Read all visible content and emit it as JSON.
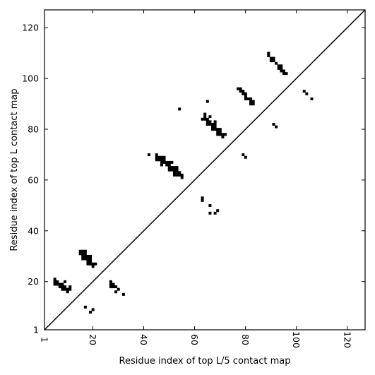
{
  "chart_data": {
    "type": "heatmap",
    "title": "",
    "xlabel": "Residue index of top L/5 contact map",
    "ylabel": "Residue index of top L contact map",
    "xlim": [
      1,
      127
    ],
    "ylim": [
      1,
      127
    ],
    "x_ticks": [
      1,
      20,
      40,
      60,
      80,
      100,
      120
    ],
    "y_ticks": [
      1,
      20,
      40,
      60,
      80,
      100,
      120
    ],
    "diagonal": true,
    "grid": false,
    "cell_color": "#000000",
    "background": "#ffffff",
    "upper_triangle_contacts": [
      [
        89,
        110
      ],
      [
        89,
        109
      ],
      [
        90,
        108
      ],
      [
        91,
        108
      ],
      [
        90,
        107
      ],
      [
        91,
        107
      ],
      [
        92,
        106
      ],
      [
        93,
        105
      ],
      [
        94,
        105
      ],
      [
        93,
        104
      ],
      [
        94,
        104
      ],
      [
        94,
        103
      ],
      [
        95,
        103
      ],
      [
        95,
        102
      ],
      [
        96,
        102
      ],
      [
        77,
        96
      ],
      [
        78,
        96
      ],
      [
        78,
        95
      ],
      [
        79,
        95
      ],
      [
        79,
        94
      ],
      [
        80,
        94
      ],
      [
        80,
        93
      ],
      [
        80,
        92
      ],
      [
        81,
        92
      ],
      [
        82,
        92
      ],
      [
        82,
        91
      ],
      [
        83,
        91
      ],
      [
        82,
        90
      ],
      [
        83,
        90
      ],
      [
        103,
        95
      ],
      [
        104,
        94
      ],
      [
        106,
        92
      ],
      [
        65,
        91
      ],
      [
        54,
        88
      ],
      [
        64,
        86
      ],
      [
        64,
        85
      ],
      [
        66,
        85
      ],
      [
        63,
        84
      ],
      [
        64,
        84
      ],
      [
        65,
        84
      ],
      [
        65,
        83
      ],
      [
        66,
        83
      ],
      [
        68,
        83
      ],
      [
        65,
        82
      ],
      [
        66,
        82
      ],
      [
        67,
        82
      ],
      [
        68,
        82
      ],
      [
        67,
        81
      ],
      [
        68,
        81
      ],
      [
        67,
        80
      ],
      [
        68,
        80
      ],
      [
        69,
        80
      ],
      [
        70,
        80
      ],
      [
        69,
        79
      ],
      [
        70,
        79
      ],
      [
        69,
        78
      ],
      [
        70,
        78
      ],
      [
        71,
        78
      ],
      [
        72,
        78
      ],
      [
        71,
        77
      ],
      [
        91,
        82
      ],
      [
        92,
        81
      ],
      [
        42,
        70
      ],
      [
        79,
        70
      ],
      [
        80,
        69
      ],
      [
        45,
        70
      ],
      [
        45,
        69
      ],
      [
        46,
        69
      ],
      [
        47,
        69
      ],
      [
        48,
        69
      ],
      [
        45,
        68
      ],
      [
        46,
        68
      ],
      [
        47,
        68
      ],
      [
        48,
        68
      ],
      [
        47,
        67
      ],
      [
        48,
        67
      ],
      [
        49,
        67
      ],
      [
        50,
        67
      ],
      [
        51,
        67
      ],
      [
        47,
        66
      ],
      [
        49,
        66
      ],
      [
        50,
        66
      ],
      [
        50,
        65
      ],
      [
        51,
        65
      ],
      [
        52,
        65
      ],
      [
        53,
        65
      ],
      [
        50,
        64
      ],
      [
        51,
        64
      ],
      [
        52,
        64
      ],
      [
        53,
        64
      ],
      [
        52,
        63
      ],
      [
        53,
        63
      ],
      [
        54,
        63
      ],
      [
        52,
        62
      ],
      [
        53,
        62
      ],
      [
        54,
        62
      ],
      [
        55,
        62
      ],
      [
        55,
        61
      ],
      [
        63,
        53
      ],
      [
        63,
        52
      ],
      [
        66,
        50
      ],
      [
        66,
        47
      ],
      [
        68,
        47
      ],
      [
        69,
        48
      ]
    ],
    "lower_triangle_contacts": [
      [
        15,
        32
      ],
      [
        16,
        32
      ],
      [
        17,
        32
      ],
      [
        15,
        31
      ],
      [
        16,
        31
      ],
      [
        17,
        31
      ],
      [
        16,
        30
      ],
      [
        17,
        30
      ],
      [
        18,
        30
      ],
      [
        19,
        30
      ],
      [
        16,
        29
      ],
      [
        17,
        29
      ],
      [
        18,
        29
      ],
      [
        19,
        29
      ],
      [
        18,
        28
      ],
      [
        19,
        28
      ],
      [
        18,
        27
      ],
      [
        19,
        27
      ],
      [
        20,
        27
      ],
      [
        21,
        27
      ],
      [
        20,
        26
      ],
      [
        5,
        21
      ],
      [
        5,
        20
      ],
      [
        6,
        20
      ],
      [
        9,
        20
      ],
      [
        5,
        19
      ],
      [
        6,
        19
      ],
      [
        7,
        19
      ],
      [
        8,
        19
      ],
      [
        7,
        18
      ],
      [
        8,
        18
      ],
      [
        9,
        18
      ],
      [
        8,
        17
      ],
      [
        9,
        17
      ],
      [
        11,
        18
      ],
      [
        10,
        17
      ],
      [
        11,
        17
      ],
      [
        10,
        16
      ],
      [
        27,
        20
      ],
      [
        27,
        19
      ],
      [
        28,
        19
      ],
      [
        27,
        18
      ],
      [
        28,
        18
      ],
      [
        29,
        18
      ],
      [
        30,
        17
      ],
      [
        29,
        16
      ],
      [
        32,
        15
      ],
      [
        17,
        10
      ],
      [
        20,
        9
      ],
      [
        19,
        8
      ]
    ]
  }
}
